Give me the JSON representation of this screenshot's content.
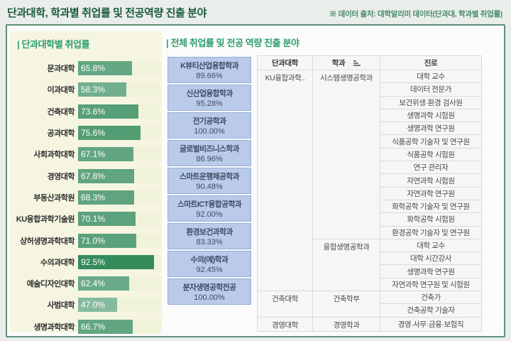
{
  "page": {
    "title": "단과대학, 학과별 취업률 및 전공역량 진출 분야",
    "source_note": "※ 데이터 출처: 대학알리미 데이터(단과대, 학과별 취업률)"
  },
  "colors": {
    "page_bg": "#e9eeea",
    "box_border": "#5c917a",
    "panel_bg": "#f5f5e2",
    "bar_track": "#f0f2da",
    "title_green": "#2e9e6b",
    "header_green": "#1a5a40",
    "dept_box_bg": "#b9cbe9",
    "dept_box_border": "#96aedd",
    "dept_box_text": "#3d4a66"
  },
  "left_panel": {
    "title": "| 단과대학별 취업률"
  },
  "right_section": {
    "title": "| 전체 취업률 및 전공 역량 진출 분야"
  },
  "chart_data": [
    {
      "type": "bar",
      "title": "단과대학별 취업률",
      "orientation": "horizontal",
      "xlim": [
        0,
        100
      ],
      "categories": [
        "문과대학",
        "이과대학",
        "건축대학",
        "공과대학",
        "사회과학대학",
        "경영대학",
        "부동산과학원",
        "KU융합과학기술원",
        "상허생명과학대학",
        "수의과대학",
        "예술디자인대학",
        "사범대학",
        "생명과학대학"
      ],
      "values": [
        65.8,
        58.3,
        73.6,
        75.6,
        67.1,
        67.8,
        68.3,
        70.1,
        71.0,
        92.5,
        62.4,
        47.0,
        66.7
      ],
      "value_labels": [
        "65.8%",
        "58.3%",
        "73.6%",
        "75.6%",
        "67.1%",
        "67.8%",
        "68.3%",
        "70.1%",
        "71.0%",
        "92.5%",
        "62.4%",
        "47.0%",
        "66.7%"
      ],
      "bar_colors": [
        "#64a783",
        "#71af8e",
        "#569f77",
        "#529d74",
        "#62a681",
        "#60a580",
        "#60a47f",
        "#5ca27c",
        "#5ba17b",
        "#348b5c",
        "#6aaa88",
        "#86bb9e",
        "#62a681"
      ]
    },
    {
      "type": "table",
      "title": "전체 취업률 및 전공 역량 진출 분야",
      "items": [
        {
          "name": "K뷰티산업융합학과",
          "value": 89.66,
          "label": "89.66%"
        },
        {
          "name": "신산업융합학과",
          "value": 95.28,
          "label": "95.28%"
        },
        {
          "name": "전기공학과",
          "value": 100.0,
          "label": "100.00%"
        },
        {
          "name": "글로벌비즈니스학과",
          "value": 86.96,
          "label": "86.96%"
        },
        {
          "name": "스마트운행체공학과",
          "value": 90.48,
          "label": "90.48%"
        },
        {
          "name": "스마트ICT융합공학과",
          "value": 92.0,
          "label": "92.00%"
        },
        {
          "name": "환경보건과학과",
          "value": 83.33,
          "label": "83.33%"
        },
        {
          "name": "수의(예)학과",
          "value": 92.45,
          "label": "92.45%"
        },
        {
          "name": "분자생명공학전공",
          "value": 100.0,
          "label": "100.00%"
        }
      ]
    }
  ],
  "career_table": {
    "headers": [
      "단과대학",
      "학과",
      "진로"
    ],
    "groups": [
      {
        "college": "KU융합과학..",
        "departments": [
          {
            "name": "시스템생명공학과",
            "careers": [
              "대학 교수",
              "데이터 전문가",
              "보건위생·환경 검사원",
              "생명과학 시험원",
              "생명과학 연구원",
              "식품공학 기술자 및 연구원",
              "식품공학 시험원",
              "연구 관리자",
              "자연과학 시험원",
              "자연과학 연구원",
              "화학공학 기술자 및 연구원",
              "화학공학 시험원",
              "환경공학 기술자 및 연구원"
            ]
          },
          {
            "name": "융합생명공학과",
            "careers": [
              "대학 교수",
              "대학 시간강사",
              "생명과학 연구원",
              "자연과학 연구원 및 시험원"
            ]
          }
        ]
      },
      {
        "college": "건축대학",
        "departments": [
          {
            "name": "건축학부",
            "careers": [
              "건축가",
              "건축공학 기술자"
            ]
          }
        ]
      },
      {
        "college": "경영대학",
        "departments": [
          {
            "name": "경영학과",
            "careers": [
              "경영·사무·금융·보험직"
            ]
          }
        ]
      }
    ]
  }
}
